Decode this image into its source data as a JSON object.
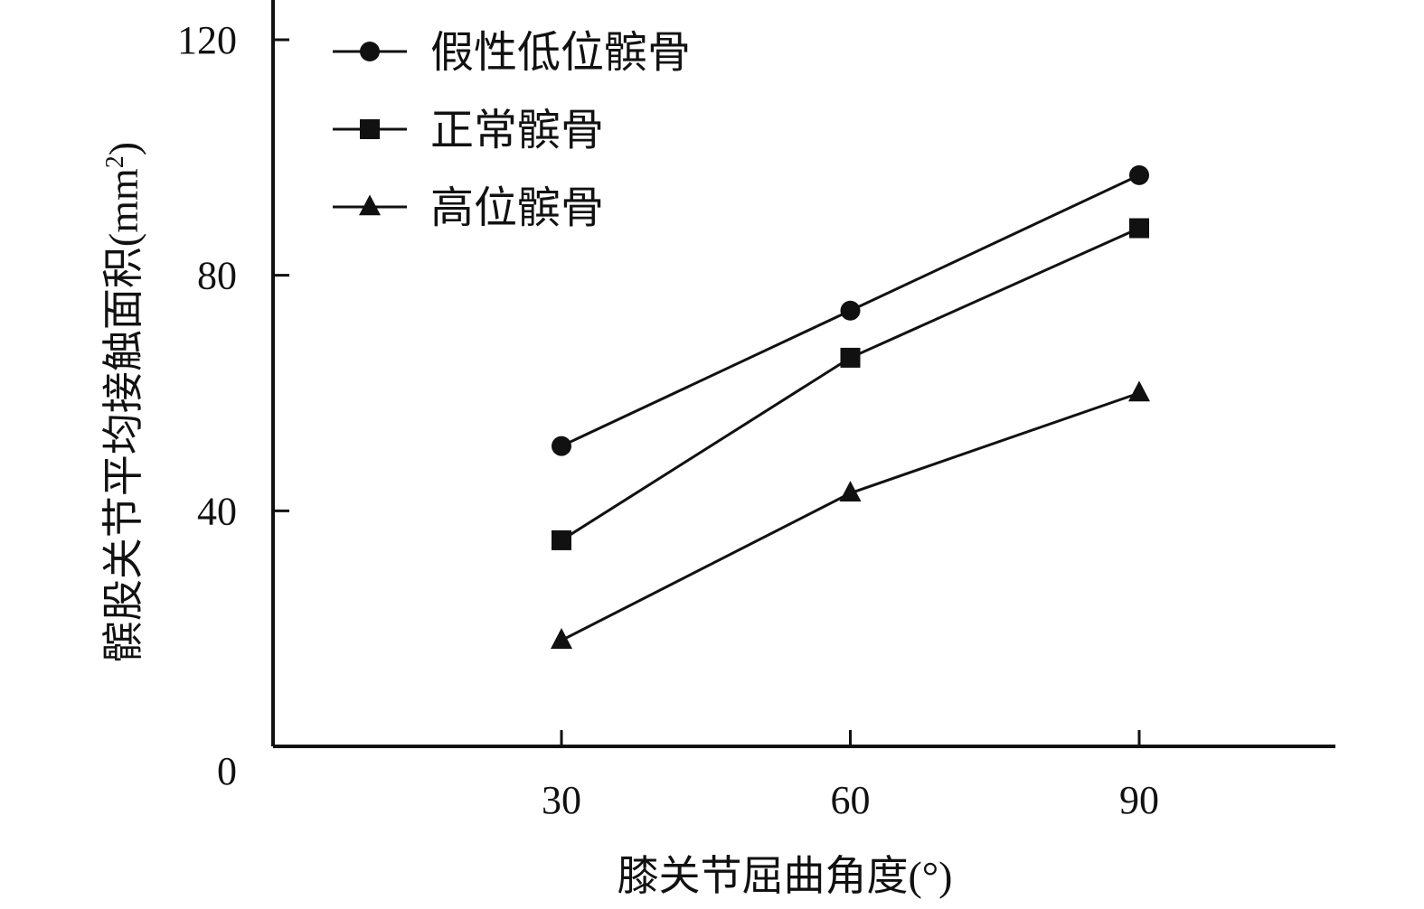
{
  "chart_data": {
    "type": "line",
    "x": [
      30,
      60,
      90
    ],
    "xlabel": "膝关节屈曲角度(°)",
    "ylabel_main": "髌股关节平均接触面积(mm",
    "ylabel_sup": "2",
    "ylabel_close": ")",
    "xlim": [
      0,
      110
    ],
    "ylim": [
      0,
      120
    ],
    "xticks": [
      "30",
      "60",
      "90"
    ],
    "yticks": [
      "0",
      "40",
      "80",
      "120"
    ],
    "ytick_values": [
      0,
      40,
      80,
      120
    ],
    "xtick_values": [
      30,
      60,
      90
    ],
    "grid": false,
    "legend_position": "top-left",
    "series": [
      {
        "name": "假性低位髌骨",
        "marker": "circle",
        "values": [
          51,
          74,
          97
        ]
      },
      {
        "name": "正常髌骨",
        "marker": "square",
        "values": [
          35,
          66,
          88
        ]
      },
      {
        "name": "高位髌骨",
        "marker": "triangle",
        "values": [
          18,
          43,
          60
        ]
      }
    ],
    "colors": {
      "line": "#111111",
      "marker": "#111111"
    }
  }
}
